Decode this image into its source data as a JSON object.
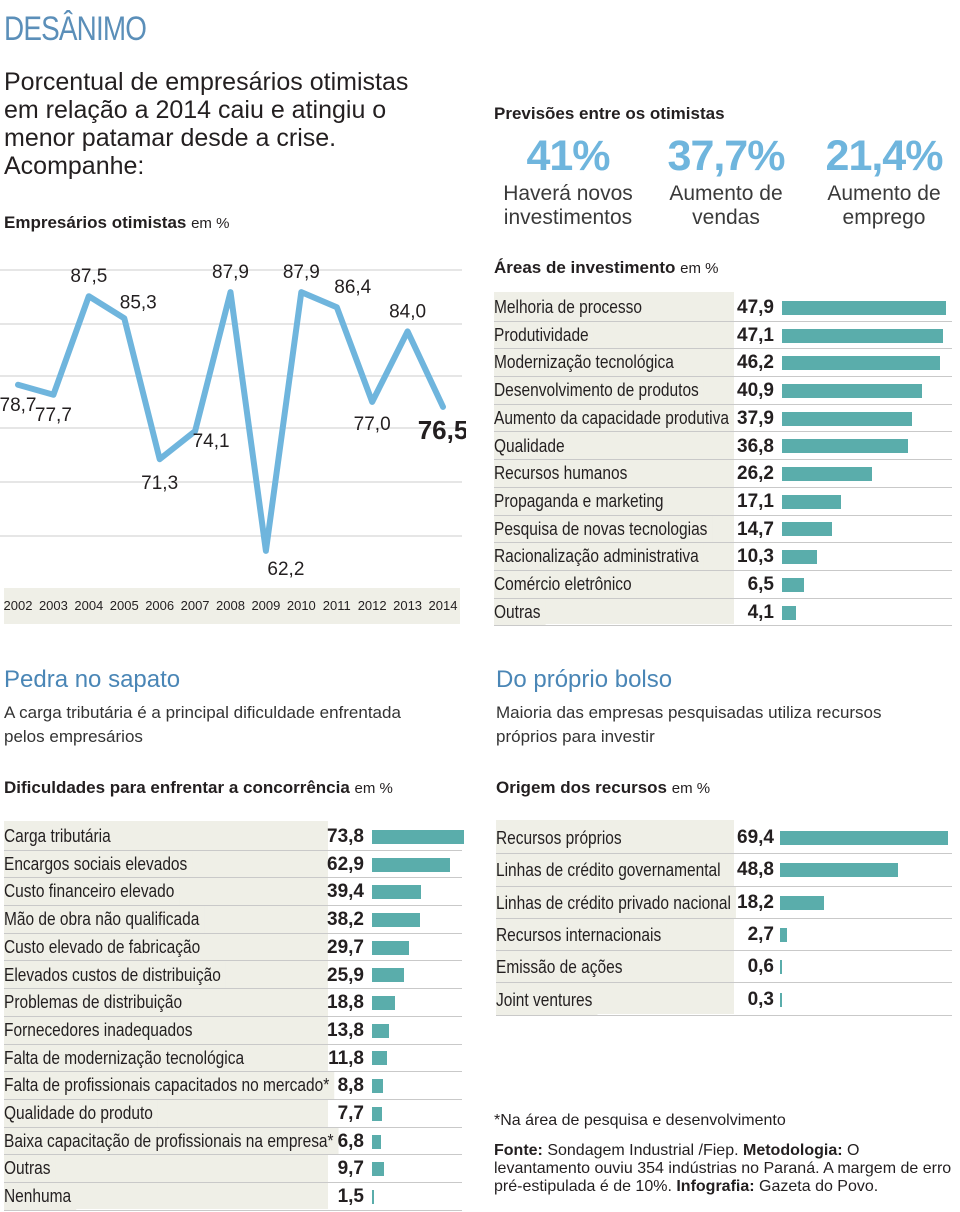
{
  "title": "DESÂNIMO",
  "intro": "Porcentual de empresários otimistas em relação a 2014 caiu e atingiu o menor patamar desde a crise. Acompanhe:",
  "otimistas": {
    "heading": "Empresários otimistas",
    "unit": "em %"
  },
  "chart_data": [
    {
      "type": "line",
      "title": "Empresários otimistas",
      "ylabel": "em %",
      "x": [
        "2002",
        "2003",
        "2004",
        "2005",
        "2006",
        "2007",
        "2008",
        "2009",
        "2010",
        "2011",
        "2012",
        "2013",
        "2014"
      ],
      "values": [
        78.7,
        77.7,
        87.5,
        85.3,
        71.3,
        74.1,
        87.9,
        62.2,
        87.9,
        86.4,
        77.0,
        84.0,
        76.5
      ],
      "labels": [
        "78,7",
        "77,7",
        "87,5",
        "85,3",
        "71,3",
        "74,1",
        "87,9",
        "62,2",
        "87,9",
        "86,4",
        "77,0",
        "84,0",
        "76,5"
      ],
      "color": "#6fb5dd"
    },
    {
      "type": "bar",
      "title": "Áreas de investimento",
      "unit": "em %",
      "categories": [
        "Melhoria de processo",
        "Produtividade",
        "Modernização tecnológica",
        "Desenvolvimento de produtos",
        "Aumento da capacidade produtiva",
        "Qualidade",
        "Recursos humanos",
        "Propaganda e marketing",
        "Pesquisa de novas tecnologias",
        "Racionalização administrativa",
        "Comércio eletrônico",
        "Outras"
      ],
      "values": [
        47.9,
        47.1,
        46.2,
        40.9,
        37.9,
        36.8,
        26.2,
        17.1,
        14.7,
        10.3,
        6.5,
        4.1
      ],
      "labels": [
        "47,9",
        "47,1",
        "46,2",
        "40,9",
        "37,9",
        "36,8",
        "26,2",
        "17,1",
        "14,7",
        "10,3",
        "6,5",
        "4,1"
      ]
    },
    {
      "type": "bar",
      "title": "Dificuldades para enfrentar a concorrência",
      "unit": "em %",
      "categories": [
        "Carga tributária",
        "Encargos sociais elevados",
        "Custo financeiro elevado",
        "Mão de obra não qualificada",
        "Custo elevado de fabricação",
        "Elevados custos de distribuição",
        "Problemas de distribuição",
        "Fornecedores inadequados",
        "Falta de modernização tecnológica",
        "Falta de profissionais capacitados no mercado*",
        "Qualidade do produto",
        "Baixa capacitação de profissionais na empresa*",
        "Outras",
        "Nenhuma"
      ],
      "values": [
        73.8,
        62.9,
        39.4,
        38.2,
        29.7,
        25.9,
        18.8,
        13.8,
        11.8,
        8.8,
        7.7,
        6.8,
        9.7,
        1.5
      ],
      "labels": [
        "73,8",
        "62,9",
        "39,4",
        "38,2",
        "29,7",
        "25,9",
        "18,8",
        "13,8",
        "11,8",
        "8,8",
        "7,7",
        "6,8",
        "9,7",
        "1,5"
      ]
    },
    {
      "type": "bar",
      "title": "Origem dos recursos",
      "unit": "em %",
      "categories": [
        "Recursos próprios",
        "Linhas de crédito governamental",
        "Linhas de crédito privado nacional",
        "Recursos internacionais",
        "Emissão de ações",
        "Joint ventures"
      ],
      "values": [
        69.4,
        48.8,
        18.2,
        2.7,
        0.6,
        0.3
      ],
      "labels": [
        "69,4",
        "48,8",
        "18,2",
        "2,7",
        "0,6",
        "0,3"
      ]
    }
  ],
  "previsoes": {
    "heading": "Previsões entre os otimistas",
    "items": [
      {
        "value": "41%",
        "label_1": "Haverá novos",
        "label_2": "investimentos"
      },
      {
        "value": "37,7%",
        "label_1": "Aumento de",
        "label_2": "vendas"
      },
      {
        "value": "21,4%",
        "label_1": "Aumento de",
        "label_2": "emprego"
      }
    ]
  },
  "pedra": {
    "title": "Pedra no sapato",
    "subtitle_1": "A carga tributária é a principal dificuldade enfrentada",
    "subtitle_2": "pelos empresários"
  },
  "bolso": {
    "title": "Do próprio bolso",
    "subtitle_1": "Maioria das empresas pesquisadas utiliza recursos",
    "subtitle_2": "próprios para investir"
  },
  "footer": {
    "note": "*Na área de pesquisa e desenvolvimento",
    "fonte_label": "Fonte:",
    "fonte_text": "Sondagem Industrial /Fiep.",
    "metodologia_label": "Metodologia:",
    "metodologia_text": "O levantamento ouviu 354 indústrias no Paraná. A margem de erro pré-estipulada é de 10%.",
    "infografia_label": "Infografia:",
    "infografia_text": "Gazeta do Povo."
  },
  "colors": {
    "line": "#6fb5dd",
    "bar": "#5aadab",
    "accent": "#4a86b6"
  }
}
